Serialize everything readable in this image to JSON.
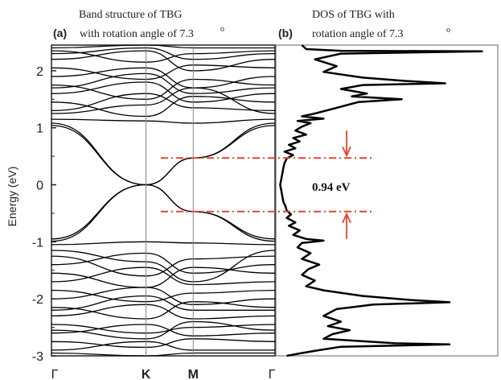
{
  "panel_a": {
    "letter": "(a)",
    "title_line1": "Band structure of TBG",
    "title_line2": "with rotation angle of 7.3",
    "title_degree": "o",
    "ylabel": "Energy (eV)"
  },
  "panel_b": {
    "letter": "(b)",
    "title_line1": "DOS of TBG with",
    "title_line2": "rotation angle of 7.3",
    "title_degree": "o"
  },
  "annotation": {
    "gap_label": "0.94 eV",
    "upper_level_eV": 0.47,
    "lower_level_eV": -0.47
  },
  "colors": {
    "band_line": "#000000",
    "dos_line": "#000000",
    "annotation": "#e8432d",
    "vertical_line": "#888888"
  },
  "chart_data": [
    {
      "type": "line",
      "name": "band_structure",
      "ylim": [
        -3,
        2.45
      ],
      "yticks": [
        -3,
        -2,
        -1,
        0,
        1,
        2
      ],
      "kpoint_labels": [
        "Γ",
        "K",
        "M",
        "Γ"
      ],
      "kpoint_positions": [
        0,
        1,
        1.5,
        2.366
      ],
      "vertical_lines_at": [
        1,
        1.5
      ],
      "series": [
        {
          "x": [
            0,
            1,
            1.5,
            2.366
          ],
          "y": [
            1.04,
            0,
            0.47,
            1.04
          ]
        },
        {
          "x": [
            0,
            1,
            1.5,
            2.366
          ],
          "y": [
            1.08,
            0,
            0.47,
            1.08
          ]
        },
        {
          "x": [
            0,
            1,
            1.5,
            2.366
          ],
          "y": [
            -0.95,
            0,
            -0.47,
            -0.95
          ]
        },
        {
          "x": [
            0,
            1,
            1.5,
            2.366
          ],
          "y": [
            -0.99,
            0,
            -0.47,
            -0.99
          ]
        },
        {
          "x": [
            0,
            1,
            1.5,
            2.366
          ],
          "y": [
            1.15,
            1.12,
            1.08,
            1.15
          ]
        },
        {
          "x": [
            0,
            1,
            1.5,
            2.366
          ],
          "y": [
            -1.05,
            -1.0,
            -1.02,
            -1.05
          ]
        },
        {
          "x": [
            0,
            1,
            1.5,
            2.366
          ],
          "y": [
            1.3,
            1.6,
            1.35,
            1.3
          ]
        },
        {
          "x": [
            0,
            1,
            1.5,
            2.366
          ],
          "y": [
            1.45,
            1.2,
            1.55,
            1.45
          ]
        },
        {
          "x": [
            0,
            1,
            1.5,
            2.366
          ],
          "y": [
            1.6,
            1.8,
            1.45,
            1.6
          ]
        },
        {
          "x": [
            0,
            1,
            1.5,
            2.366
          ],
          "y": [
            1.75,
            1.5,
            1.85,
            1.75
          ]
        },
        {
          "x": [
            0,
            1,
            1.5,
            2.366
          ],
          "y": [
            1.9,
            2.05,
            1.7,
            1.9
          ]
        },
        {
          "x": [
            0,
            1,
            1.5,
            2.366
          ],
          "y": [
            2.05,
            1.85,
            2.1,
            2.05
          ]
        },
        {
          "x": [
            0,
            1,
            1.5,
            2.366
          ],
          "y": [
            2.2,
            2.35,
            2.0,
            2.2
          ]
        },
        {
          "x": [
            0,
            1,
            1.5,
            2.366
          ],
          "y": [
            2.35,
            2.15,
            2.3,
            2.35
          ]
        },
        {
          "x": [
            0,
            1,
            1.5,
            2.366
          ],
          "y": [
            2.4,
            2.45,
            2.4,
            2.4
          ]
        },
        {
          "x": [
            0,
            1,
            1.5,
            2.366
          ],
          "y": [
            2.3,
            2.4,
            2.2,
            2.3
          ]
        },
        {
          "x": [
            0,
            1,
            1.5,
            2.366
          ],
          "y": [
            1.25,
            1.4,
            1.7,
            1.25
          ]
        },
        {
          "x": [
            0,
            1,
            1.5,
            2.366
          ],
          "y": [
            1.7,
            1.95,
            1.6,
            1.7
          ]
        },
        {
          "x": [
            0,
            1,
            1.5,
            2.366
          ],
          "y": [
            -1.25,
            -1.6,
            -1.3,
            -1.25
          ]
        },
        {
          "x": [
            0,
            1,
            1.5,
            2.366
          ],
          "y": [
            -1.4,
            -1.2,
            -1.55,
            -1.4
          ]
        },
        {
          "x": [
            0,
            1,
            1.5,
            2.366
          ],
          "y": [
            -1.55,
            -1.8,
            -1.45,
            -1.55
          ]
        },
        {
          "x": [
            0,
            1,
            1.5,
            2.366
          ],
          "y": [
            -1.7,
            -1.45,
            -1.75,
            -1.7
          ]
        },
        {
          "x": [
            0,
            1,
            1.5,
            2.366
          ],
          "y": [
            -1.85,
            -2.05,
            -1.9,
            -1.85
          ]
        },
        {
          "x": [
            0,
            1,
            1.5,
            2.366
          ],
          "y": [
            -2.0,
            -1.8,
            -2.1,
            -2.0
          ]
        },
        {
          "x": [
            0,
            1,
            1.5,
            2.366
          ],
          "y": [
            -2.15,
            -2.35,
            -2.05,
            -2.15
          ]
        },
        {
          "x": [
            0,
            1,
            1.5,
            2.366
          ],
          "y": [
            -2.3,
            -2.1,
            -2.35,
            -2.3
          ]
        },
        {
          "x": [
            0,
            1,
            1.5,
            2.366
          ],
          "y": [
            -2.45,
            -2.6,
            -2.5,
            -2.45
          ]
        },
        {
          "x": [
            0,
            1,
            1.5,
            2.366
          ],
          "y": [
            -2.6,
            -2.45,
            -2.65,
            -2.6
          ]
        },
        {
          "x": [
            0,
            1,
            1.5,
            2.366
          ],
          "y": [
            -2.75,
            -2.85,
            -2.7,
            -2.75
          ]
        },
        {
          "x": [
            0,
            1,
            1.5,
            2.366
          ],
          "y": [
            -2.9,
            -2.75,
            -2.9,
            -2.9
          ]
        },
        {
          "x": [
            0,
            1,
            1.5,
            2.366
          ],
          "y": [
            -2.95,
            -3.0,
            -2.95,
            -2.95
          ]
        },
        {
          "x": [
            0,
            1,
            1.5,
            2.366
          ],
          "y": [
            -1.15,
            -1.35,
            -1.7,
            -1.15
          ]
        },
        {
          "x": [
            0,
            1,
            1.5,
            2.366
          ],
          "y": [
            -2.2,
            -1.95,
            -2.2,
            -2.2
          ]
        },
        {
          "x": [
            0,
            1,
            1.5,
            2.366
          ],
          "y": [
            -2.55,
            -2.7,
            -2.4,
            -2.55
          ]
        }
      ]
    },
    {
      "type": "line",
      "name": "dos",
      "ylim": [
        -3,
        2.45
      ],
      "points": [
        [
          0.12,
          2.45
        ],
        [
          0.14,
          2.38
        ],
        [
          0.3,
          2.35
        ],
        [
          0.95,
          2.34
        ],
        [
          0.3,
          2.3
        ],
        [
          0.18,
          2.2
        ],
        [
          0.28,
          2.08
        ],
        [
          0.22,
          1.98
        ],
        [
          0.4,
          1.88
        ],
        [
          0.6,
          1.82
        ],
        [
          0.78,
          1.78
        ],
        [
          0.4,
          1.75
        ],
        [
          0.3,
          1.68
        ],
        [
          0.42,
          1.6
        ],
        [
          0.35,
          1.55
        ],
        [
          0.58,
          1.5
        ],
        [
          0.38,
          1.45
        ],
        [
          0.28,
          1.35
        ],
        [
          0.18,
          1.25
        ],
        [
          0.12,
          1.2
        ],
        [
          0.22,
          1.16
        ],
        [
          0.1,
          1.12
        ],
        [
          0.16,
          1.08
        ],
        [
          0.12,
          1.02
        ],
        [
          0.09,
          0.95
        ],
        [
          0.14,
          0.88
        ],
        [
          0.08,
          0.82
        ],
        [
          0.11,
          0.76
        ],
        [
          0.06,
          0.7
        ],
        [
          0.09,
          0.64
        ],
        [
          0.04,
          0.58
        ],
        [
          0.08,
          0.52
        ],
        [
          0.05,
          0.46
        ],
        [
          0.04,
          0.38
        ],
        [
          0.035,
          0.3
        ],
        [
          0.03,
          0.2
        ],
        [
          0.025,
          0.1
        ],
        [
          0.02,
          0.0
        ],
        [
          0.025,
          -0.1
        ],
        [
          0.03,
          -0.2
        ],
        [
          0.035,
          -0.3
        ],
        [
          0.045,
          -0.38
        ],
        [
          0.05,
          -0.45
        ],
        [
          0.07,
          -0.52
        ],
        [
          0.05,
          -0.58
        ],
        [
          0.09,
          -0.66
        ],
        [
          0.06,
          -0.72
        ],
        [
          0.11,
          -0.8
        ],
        [
          0.08,
          -0.88
        ],
        [
          0.14,
          -0.95
        ],
        [
          0.22,
          -0.98
        ],
        [
          0.12,
          -1.02
        ],
        [
          0.1,
          -1.1
        ],
        [
          0.16,
          -1.2
        ],
        [
          0.12,
          -1.3
        ],
        [
          0.2,
          -1.4
        ],
        [
          0.15,
          -1.48
        ],
        [
          0.12,
          -1.58
        ],
        [
          0.18,
          -1.68
        ],
        [
          0.14,
          -1.78
        ],
        [
          0.22,
          -1.85
        ],
        [
          0.4,
          -1.95
        ],
        [
          0.62,
          -2.02
        ],
        [
          0.8,
          -2.06
        ],
        [
          0.45,
          -2.1
        ],
        [
          0.28,
          -2.18
        ],
        [
          0.22,
          -2.3
        ],
        [
          0.3,
          -2.4
        ],
        [
          0.24,
          -2.48
        ],
        [
          0.34,
          -2.55
        ],
        [
          0.26,
          -2.62
        ],
        [
          0.22,
          -2.7
        ],
        [
          0.55,
          -2.78
        ],
        [
          0.8,
          -2.8
        ],
        [
          0.3,
          -2.84
        ],
        [
          0.2,
          -2.9
        ],
        [
          0.12,
          -2.95
        ],
        [
          0.05,
          -3.0
        ]
      ]
    }
  ]
}
